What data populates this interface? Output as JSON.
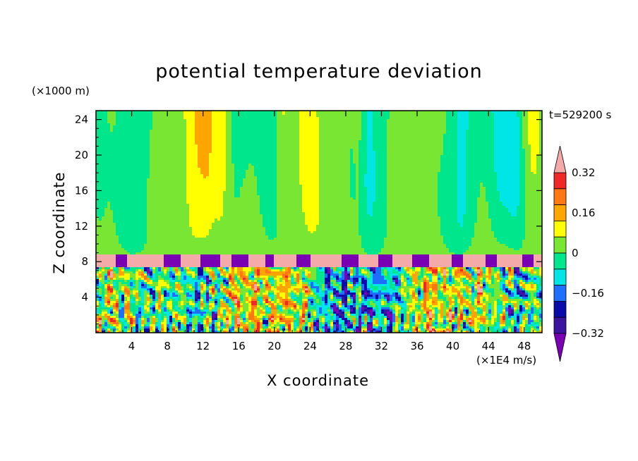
{
  "chart_data": {
    "type": "heatmap",
    "title": "potential temperature deviation",
    "xlabel": "X coordinate",
    "ylabel": "Z coordinate",
    "x_unit": "(×1E4 m/s)",
    "y_unit": "(×1000 m)",
    "time_label": "t=529200 s",
    "xlim": [
      0,
      50
    ],
    "ylim": [
      0,
      25
    ],
    "x_ticks": [
      4,
      8,
      12,
      16,
      20,
      24,
      28,
      32,
      36,
      40,
      44,
      48
    ],
    "y_ticks": [
      4,
      8,
      12,
      16,
      20,
      24
    ],
    "colorbar": {
      "levels": [
        -0.4,
        -0.32,
        -0.24,
        -0.16,
        -0.08,
        0,
        0.08,
        0.16,
        0.24,
        0.32,
        0.4
      ],
      "tick_labels": [
        "0.32",
        "0.16",
        "0",
        "−0.16",
        "−0.32"
      ],
      "tick_values": [
        0.32,
        0.16,
        0,
        -0.16,
        -0.32
      ],
      "colors": [
        "#7a00b4",
        "#3c14a0",
        "#0a0aa8",
        "#1e6eff",
        "#00e6e6",
        "#00e68c",
        "#78e632",
        "#ffff00",
        "#ffa500",
        "#ff7814",
        "#f02828",
        "#f5aaaa"
      ]
    },
    "features": {
      "inversion_layer_z": 8.0,
      "upper_layer": "weak deviations near 0 to +0.08 (green), with columns of slight warming (yellow) and cooling (cyan)",
      "lower_layer": "strong turbulent deviations spanning full range below 7 km"
    }
  }
}
